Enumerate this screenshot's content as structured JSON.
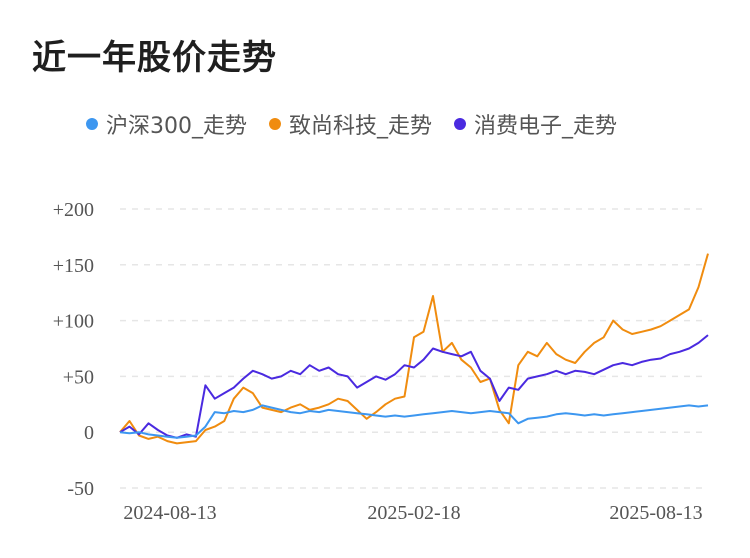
{
  "title": "近一年股价走势",
  "chart_data": {
    "type": "line",
    "title": "近一年股价走势",
    "xlabel": "",
    "ylabel": "",
    "ylim": [
      -50,
      200
    ],
    "yticks": [
      "+200",
      "+150",
      "+100",
      "+50",
      "0",
      "-50"
    ],
    "ytick_values": [
      200,
      150,
      100,
      50,
      0,
      -50
    ],
    "xticks": [
      "2024-08-13",
      "2025-02-18",
      "2025-08-13"
    ],
    "grid": true,
    "legend_position": "top",
    "series": [
      {
        "name": "沪深300_走势",
        "color": "#3d97f0",
        "values": [
          0,
          -1,
          0,
          -2,
          -3,
          -4,
          -5,
          -4,
          -3,
          5,
          18,
          17,
          19,
          18,
          20,
          24,
          22,
          20,
          18,
          17,
          19,
          18,
          20,
          19,
          18,
          17,
          16,
          15,
          14,
          15,
          14,
          15,
          16,
          17,
          18,
          19,
          18,
          17,
          18,
          19,
          18,
          17,
          8,
          12,
          13,
          14,
          16,
          17,
          16,
          15,
          16,
          15,
          16,
          17,
          18,
          19,
          20,
          21,
          22,
          23,
          24,
          23,
          24
        ]
      },
      {
        "name": "致尚科技_走势",
        "color": "#f08c0f",
        "values": [
          0,
          10,
          -3,
          -6,
          -4,
          -8,
          -10,
          -9,
          -8,
          2,
          5,
          10,
          30,
          40,
          35,
          22,
          20,
          18,
          22,
          25,
          20,
          22,
          25,
          30,
          28,
          20,
          12,
          18,
          25,
          30,
          32,
          85,
          90,
          122,
          72,
          80,
          65,
          58,
          45,
          48,
          20,
          8,
          60,
          72,
          68,
          80,
          70,
          65,
          62,
          72,
          80,
          85,
          100,
          92,
          88,
          90,
          92,
          95,
          100,
          105,
          110,
          130,
          160
        ]
      },
      {
        "name": "消费电子_走势",
        "color": "#4a2ae0",
        "values": [
          0,
          5,
          -2,
          8,
          2,
          -3,
          -5,
          -2,
          -4,
          42,
          30,
          35,
          40,
          48,
          55,
          52,
          48,
          50,
          55,
          52,
          60,
          55,
          58,
          52,
          50,
          40,
          45,
          50,
          47,
          52,
          60,
          58,
          65,
          75,
          72,
          70,
          68,
          72,
          55,
          48,
          28,
          40,
          38,
          48,
          50,
          52,
          55,
          52,
          55,
          54,
          52,
          56,
          60,
          62,
          60,
          63,
          65,
          66,
          70,
          72,
          75,
          80,
          87
        ]
      }
    ]
  }
}
